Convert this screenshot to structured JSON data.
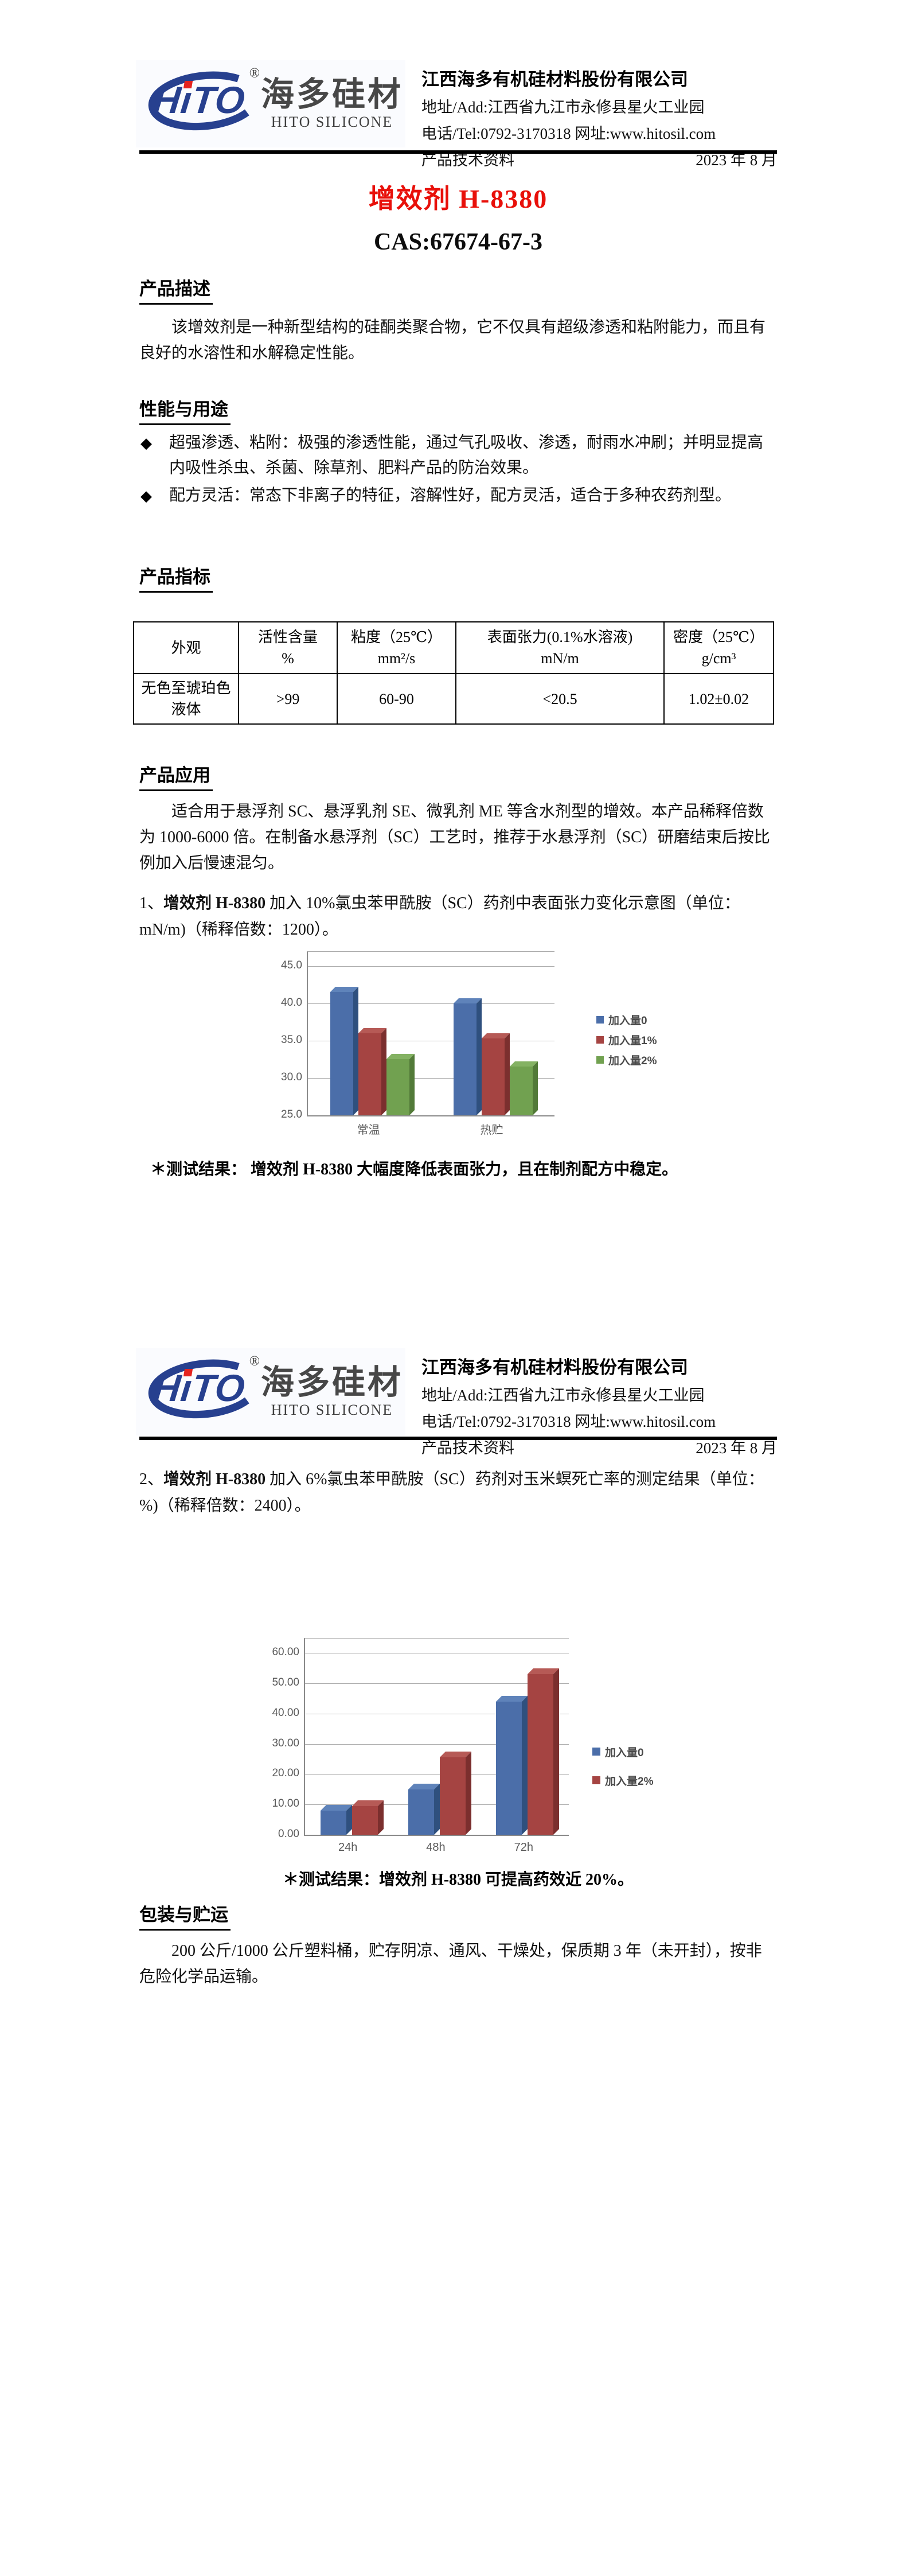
{
  "header": {
    "logo": {
      "mark_text": "HTO",
      "reg": "®",
      "cn": "海多硅材",
      "en": "HITO SILICONE",
      "navy": "#27408f",
      "red": "#e5231f"
    },
    "company": "江西海多有机硅材料股份有限公司",
    "address": "地址/Add:江西省九江市永修县星火工业园",
    "tel_web": "电话/Tel:0792-3170318 网址:www.hitosil.com",
    "doc_type": "产品技术资料",
    "date": "2023 年 8 月"
  },
  "title": {
    "product": "增效剂 H-8380",
    "cas": "CAS:67674-67-3"
  },
  "desc": {
    "heading": "产品描述",
    "text": "该增效剂是一种新型结构的硅酮类聚合物，它不仅具有超级渗透和粘附能力，而且有良好的水溶性和水解稳定性能。"
  },
  "perf": {
    "heading": "性能与用途",
    "bullets": [
      {
        "marker": "◆",
        "text": "超强渗透、粘附：极强的渗透性能，通过气孔吸收、渗透，耐雨水冲刷；并明显提高内吸性杀虫、杀菌、除草剂、肥料产品的防治效果。"
      },
      {
        "marker": "◆",
        "text": "配方灵活：常态下非离子的特征，溶解性好，配方灵活，适合于多种农药剂型。"
      }
    ]
  },
  "spec": {
    "heading": "产品指标",
    "table": {
      "headers": [
        {
          "l1": "外观",
          "l2": ""
        },
        {
          "l1": "活性含量",
          "l2": "%"
        },
        {
          "l1": "粘度（25℃）",
          "l2": "mm²/s"
        },
        {
          "l1": "表面张力(0.1%水溶液)",
          "l2": "mN/m"
        },
        {
          "l1": "密度（25℃）",
          "l2": "g/cm³"
        }
      ],
      "row": [
        "无色至琥珀色液体",
        ">99",
        "60-90",
        "<20.5",
        "1.02±0.02"
      ]
    }
  },
  "app": {
    "heading": "产品应用",
    "text": "适合用于悬浮剂 SC、悬浮乳剂 SE、微乳剂 ME 等含水剂型的增效。本产品稀释倍数为 1000-6000 倍。在制备水悬浮剂（SC）工艺时，推荐于水悬浮剂（SC）研磨结束后按比例加入后慢速混匀。"
  },
  "item1": {
    "num": "1、",
    "bold": "增效剂 H-8380",
    "rest": " 加入 10%氯虫苯甲酰胺（SC）药剂中表面张力变化示意图（单位：mN/m)（稀释倍数：1200）。"
  },
  "result1": "＊测试结果： 增效剂 H-8380 大幅度降低表面张力，且在制剂配方中稳定。",
  "item2": {
    "num": "2、",
    "bold": "增效剂 H-8380",
    "rest": " 加入 6%氯虫苯甲酰胺（SC）药剂对玉米螟死亡率的测定结果（单位：%)（稀释倍数：2400）。"
  },
  "result2": "＊测试结果：增效剂 H-8380 可提高药效近 20%。",
  "pack": {
    "heading": "包装与贮运",
    "text": "200 公斤/1000 公斤塑料桶，贮存阴凉、通风、干燥处，保质期 3 年（未开封），按非危险化学品运输。"
  },
  "chart_data": [
    {
      "type": "bar",
      "title": "",
      "categories": [
        "常温",
        "热贮"
      ],
      "series": [
        {
          "name": "加入量0",
          "values": [
            41.5,
            40.0
          ],
          "face": "#4b6ea9",
          "side": "#2f507e",
          "top": "#5f83ba"
        },
        {
          "name": "加入量1%",
          "values": [
            36.0,
            35.3
          ],
          "face": "#a54442",
          "side": "#7b2f2e",
          "top": "#b65a56"
        },
        {
          "name": "加入量2%",
          "values": [
            32.5,
            31.5
          ],
          "face": "#71a150",
          "side": "#527a38",
          "top": "#84b263"
        }
      ],
      "xlabel": "",
      "ylabel": "",
      "ylim": [
        25,
        45
      ],
      "ytick_step": 5,
      "tick_decimals": 1,
      "grid": true,
      "legend_position": "right"
    },
    {
      "type": "bar",
      "title": "",
      "categories": [
        "24h",
        "48h",
        "72h"
      ],
      "series": [
        {
          "name": "加入量0",
          "values": [
            8.0,
            15.0,
            44.0
          ],
          "face": "#4b6ea9",
          "side": "#2f507e",
          "top": "#5f83ba"
        },
        {
          "name": "加入量2%",
          "values": [
            9.5,
            25.5,
            53.0
          ],
          "face": "#a54442",
          "side": "#7b2f2e",
          "top": "#b65a56"
        }
      ],
      "xlabel": "",
      "ylabel": "",
      "ylim": [
        0,
        60
      ],
      "ytick_step": 10,
      "tick_decimals": 2,
      "grid": true,
      "legend_position": "right"
    }
  ]
}
